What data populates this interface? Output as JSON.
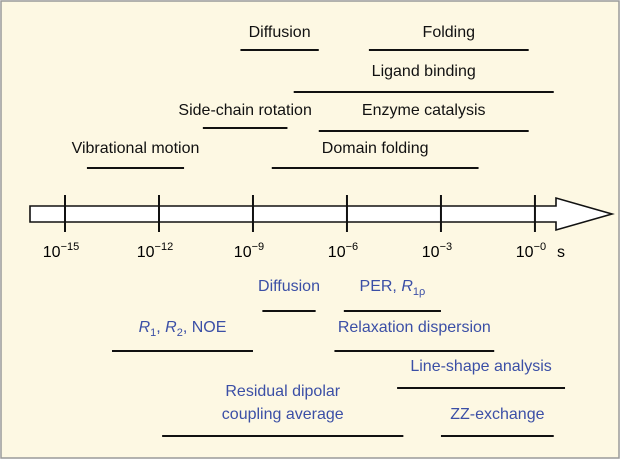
{
  "axis": {
    "unit": "s",
    "ticks": [
      {
        "value": -15,
        "base": "10",
        "exp": "−15"
      },
      {
        "value": -12,
        "base": "10",
        "exp": "−12"
      },
      {
        "value": -9,
        "base": "10",
        "exp": "−9"
      },
      {
        "value": -6,
        "base": "10",
        "exp": "−6"
      },
      {
        "value": -3,
        "base": "10",
        "exp": "−3"
      },
      {
        "value": 0,
        "base": "10",
        "exp": "−0"
      }
    ]
  },
  "processes": [
    {
      "label": [
        {
          "text": "Diffusion"
        }
      ],
      "range": [
        -9.4,
        -6.9
      ]
    },
    {
      "label": [
        {
          "text": "Folding"
        }
      ],
      "range": [
        -5.3,
        -0.2
      ]
    },
    {
      "label": [
        {
          "text": "Ligand binding"
        }
      ],
      "range": [
        -7.7,
        0.6
      ]
    },
    {
      "label": [
        {
          "text": "Side-chain rotation"
        }
      ],
      "range": [
        -10.6,
        -7.9
      ]
    },
    {
      "label": [
        {
          "text": "Enzyme catalysis"
        }
      ],
      "range": [
        -6.9,
        -0.2
      ]
    },
    {
      "label": [
        {
          "text": "Vibrational motion"
        }
      ],
      "range": [
        -14.3,
        -11.2
      ]
    },
    {
      "label": [
        {
          "text": "Domain folding"
        }
      ],
      "range": [
        -8.4,
        -1.8
      ]
    }
  ],
  "methods": [
    {
      "label": [
        {
          "text": "Diffusion"
        }
      ],
      "range": [
        -8.7,
        -7.0
      ]
    },
    {
      "label": [
        {
          "text": "PER, "
        },
        {
          "text": "R",
          "style": "italic"
        },
        {
          "text": "1ρ",
          "style": "sub"
        }
      ],
      "range": [
        -6.1,
        -3.0
      ]
    },
    {
      "label": [
        {
          "text": "R",
          "style": "italic"
        },
        {
          "text": "1",
          "style": "sub"
        },
        {
          "text": ", "
        },
        {
          "text": "R",
          "style": "italic"
        },
        {
          "text": "2",
          "style": "sub"
        },
        {
          "text": ", NOE"
        }
      ],
      "range": [
        -13.5,
        -9.0
      ]
    },
    {
      "label": [
        {
          "text": "Relaxation dispersion"
        }
      ],
      "range": [
        -6.4,
        -1.3
      ]
    },
    {
      "label": [
        {
          "text": "Line-shape analysis"
        }
      ],
      "range": [
        -4.4,
        0.96
      ]
    },
    {
      "label": [
        {
          "text": "Residual dipolar"
        },
        {
          "text": "coupling average",
          "style": "newline"
        }
      ],
      "range": [
        -11.9,
        -4.2
      ]
    },
    {
      "label": [
        {
          "text": "ZZ-exchange"
        }
      ],
      "range": [
        -3.0,
        0.6
      ]
    }
  ]
}
